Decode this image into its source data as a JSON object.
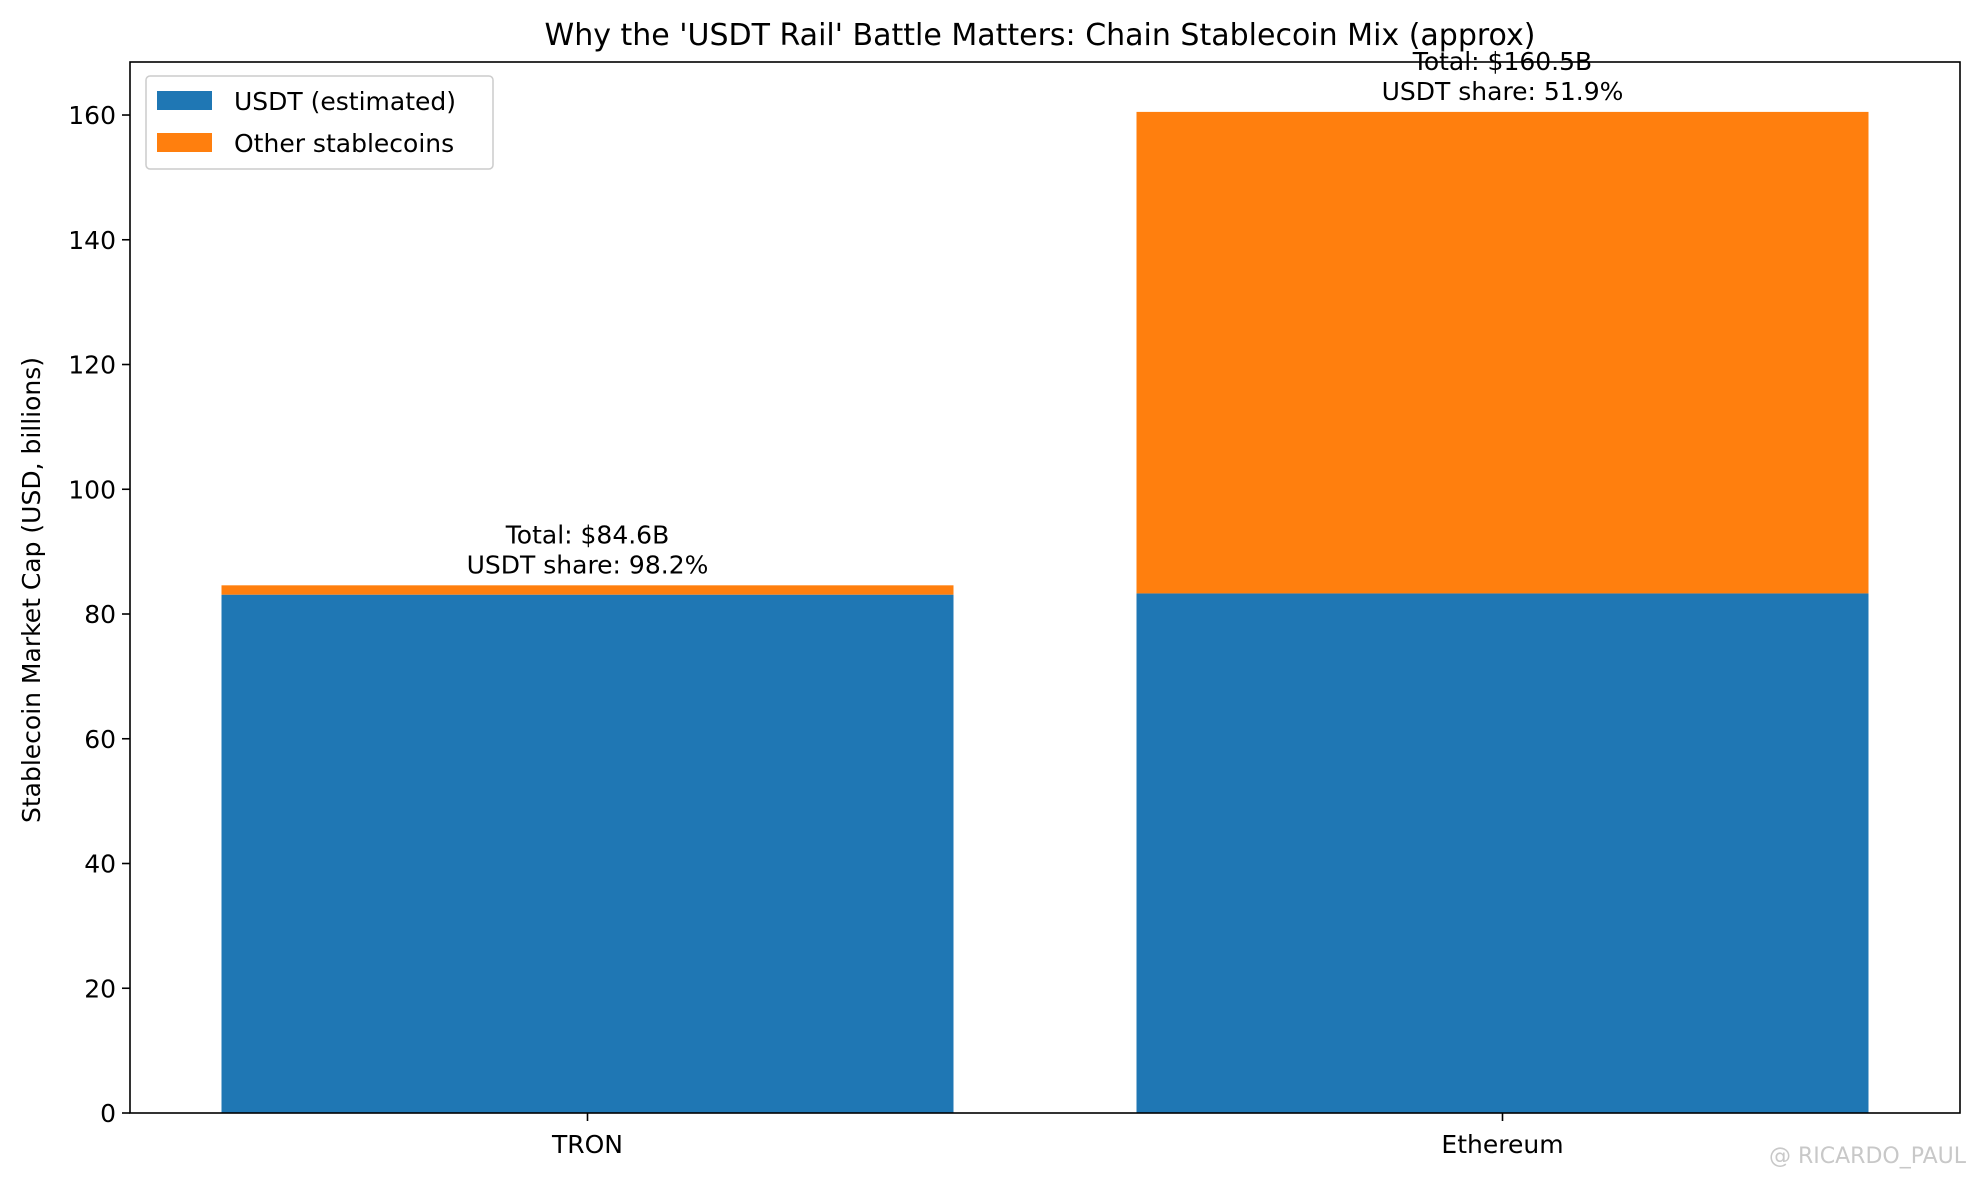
{
  "chart_data": {
    "type": "bar",
    "stacked": true,
    "title": "Why the 'USDT Rail' Battle Matters: Chain Stablecoin Mix (approx)",
    "xlabel": "",
    "ylabel": "Stablecoin Market Cap (USD, billions)",
    "categories": [
      "TRON",
      "Ethereum"
    ],
    "series": [
      {
        "name": "USDT (estimated)",
        "values": [
          83.1,
          83.3
        ],
        "color": "#1f77b4"
      },
      {
        "name": "Other stablecoins",
        "values": [
          1.5,
          77.2
        ],
        "color": "#ff7f0e"
      }
    ],
    "annotations": [
      {
        "category": "TRON",
        "total": 84.6,
        "lines": [
          "Total: $84.6B",
          "USDT share: 98.2%"
        ]
      },
      {
        "category": "Ethereum",
        "total": 160.5,
        "lines": [
          "Total: $160.5B",
          "USDT share: 51.9%"
        ]
      }
    ],
    "ylim": [
      0,
      168.5
    ],
    "yticks": [
      0,
      20,
      40,
      60,
      80,
      100,
      120,
      140,
      160
    ],
    "grid": false,
    "legend_position": "top-left"
  },
  "watermark": "@ RICARDO_PAUL"
}
